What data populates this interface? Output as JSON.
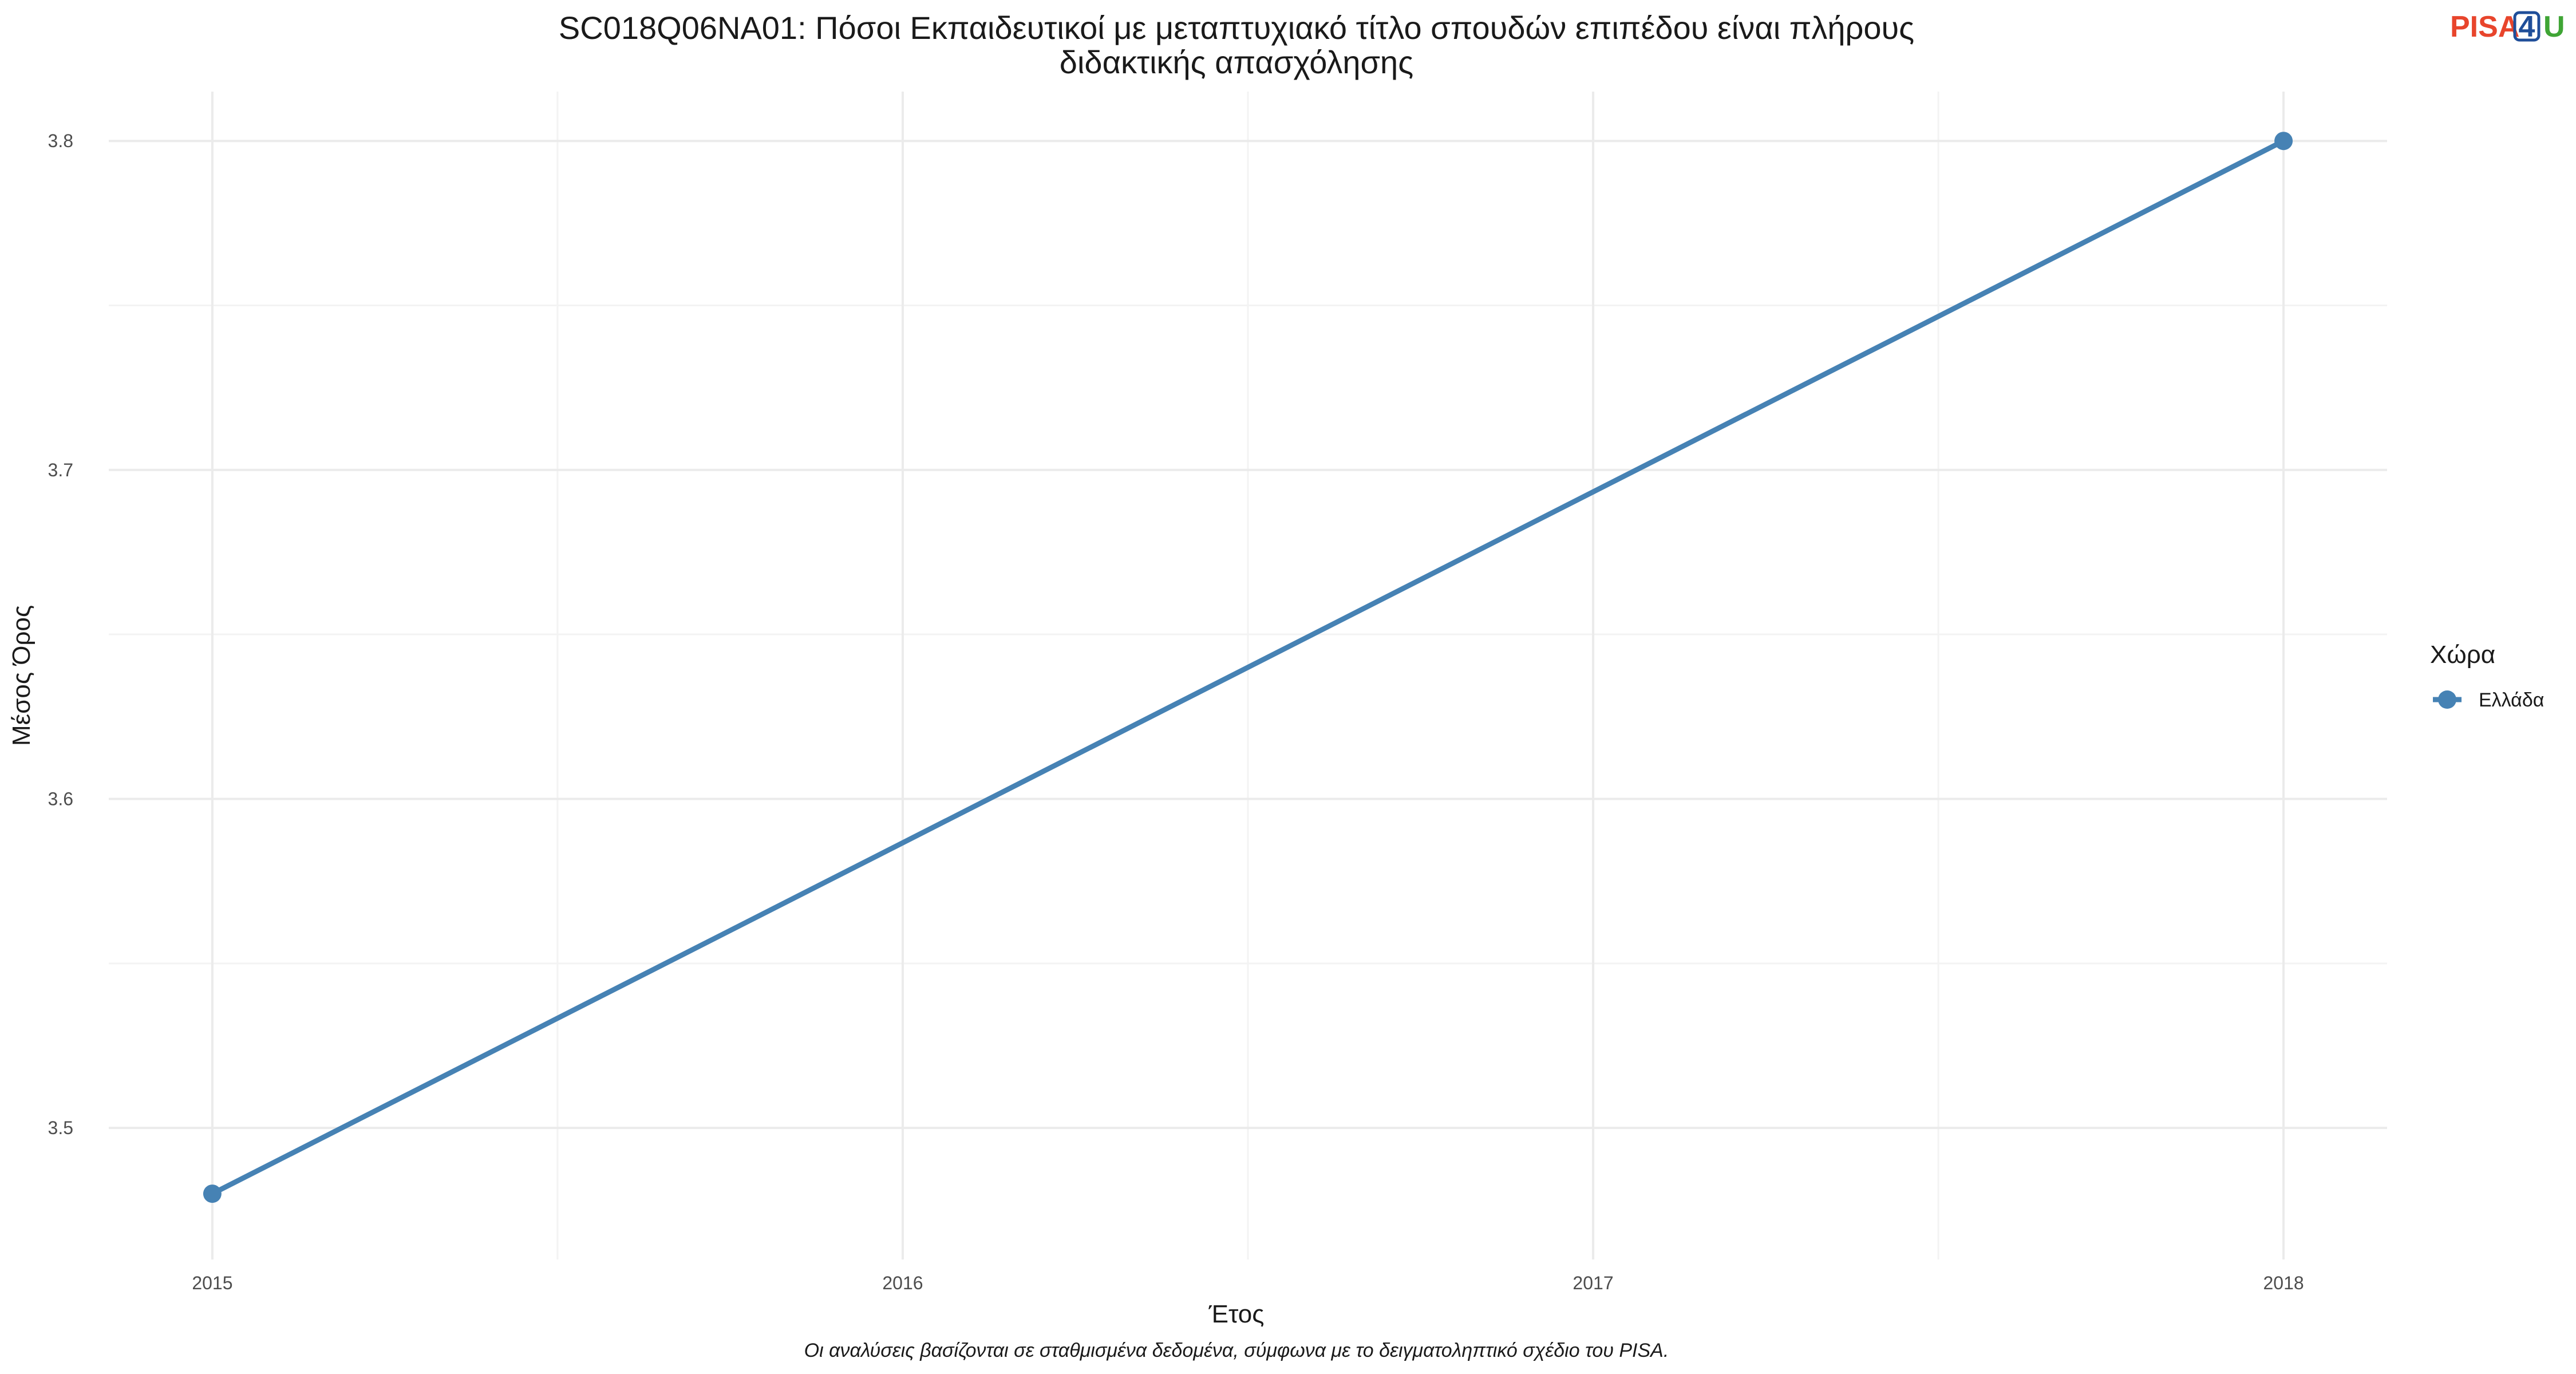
{
  "chart_data": {
    "type": "line",
    "title_lines": [
      "SC018Q06NA01: Πόσοι Εκπαιδευτικοί με μεταπτυχιακό τίτλο σπουδών επιπέδου είναι πλήρους",
      "διδακτικής απασχόλησης"
    ],
    "xlabel": "Έτος",
    "ylabel": "Μέσος Όρος",
    "x_ticks": [
      2015,
      2016,
      2017,
      2018
    ],
    "y_ticks": [
      "3.5",
      "3.6",
      "3.7",
      "3.8"
    ],
    "xlim": [
      2014.85,
      2018.15
    ],
    "ylim": [
      3.46,
      3.815
    ],
    "grid": true,
    "legend": {
      "title": "Χώρα",
      "position": "right"
    },
    "series": [
      {
        "name": "Ελλάδα",
        "color": "#4682B4",
        "points": [
          {
            "x": 2015,
            "y": 3.48
          },
          {
            "x": 2018,
            "y": 3.8
          }
        ]
      }
    ],
    "caption": "Οι αναλύσεις βασίζονται σε σταθμισμένα δεδομένα, σύμφωνα με το δειγματοληπτικό σχέδιο του PISA."
  },
  "logo": {
    "part1": "PISA",
    "part2": "4",
    "part3": "U",
    "color1": "#E8452C",
    "color2": "#1F4E99",
    "color3": "#3FA535"
  }
}
